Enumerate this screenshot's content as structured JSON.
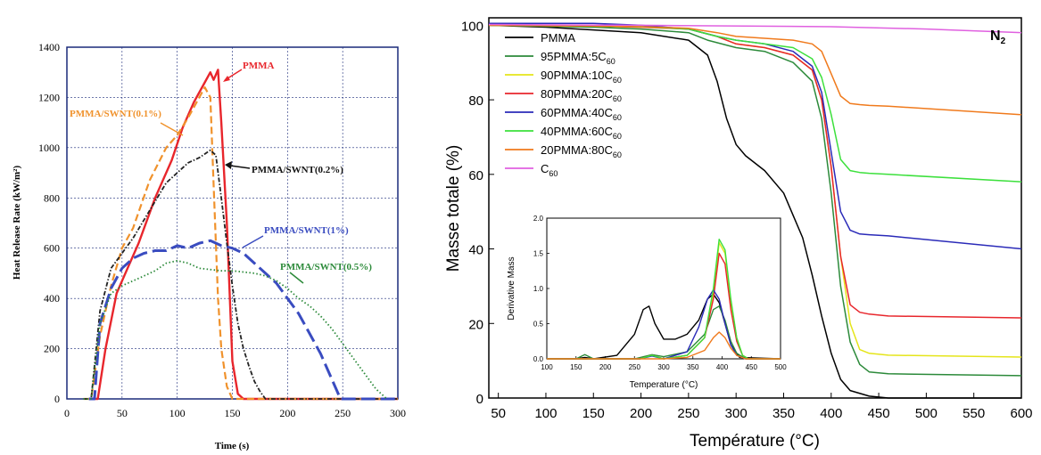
{
  "chart_data": [
    {
      "type": "line",
      "xlabel": "Time (s)",
      "ylabel": "Heat Release Rate (kW/m²)",
      "xlim": [
        0,
        300
      ],
      "ylim": [
        0,
        1400
      ],
      "xticks": [
        0,
        50,
        100,
        150,
        200,
        250,
        300
      ],
      "yticks": [
        0,
        200,
        400,
        600,
        800,
        1000,
        1200,
        1400
      ],
      "grid": true,
      "series": [
        {
          "name": "PMMA",
          "color": "#e8262c",
          "style": "solid",
          "x": [
            20,
            28,
            35,
            45,
            55,
            65,
            80,
            95,
            105,
            115,
            125,
            130,
            133,
            137,
            140,
            145,
            150,
            155,
            160,
            300
          ],
          "y": [
            0,
            0,
            200,
            420,
            520,
            620,
            800,
            950,
            1080,
            1180,
            1260,
            1300,
            1270,
            1310,
            1100,
            700,
            150,
            20,
            0,
            0
          ]
        },
        {
          "name": "PMMA/SWNT(0.1%)",
          "color": "#f0922c",
          "style": "dashed",
          "x": [
            15,
            22,
            30,
            40,
            50,
            60,
            75,
            90,
            100,
            110,
            120,
            125,
            130,
            133,
            137,
            140,
            145,
            150,
            155,
            300
          ],
          "y": [
            0,
            0,
            250,
            450,
            600,
            680,
            870,
            1000,
            1050,
            1120,
            1200,
            1240,
            1200,
            850,
            400,
            200,
            50,
            0,
            0,
            0
          ]
        },
        {
          "name": "PMMA/SWNT(0.2%)",
          "color": "#222222",
          "style": "dotdash",
          "x": [
            15,
            22,
            30,
            40,
            50,
            60,
            75,
            90,
            100,
            110,
            120,
            130,
            135,
            140,
            145,
            150,
            155,
            160,
            165,
            170,
            175,
            180,
            300
          ],
          "y": [
            0,
            0,
            350,
            520,
            580,
            640,
            750,
            860,
            900,
            940,
            960,
            990,
            970,
            800,
            620,
            450,
            300,
            200,
            130,
            70,
            30,
            0,
            0
          ]
        },
        {
          "name": "PMMA/SWNT(1%)",
          "color": "#3a4cc0",
          "style": "longdash",
          "x": [
            20,
            25,
            30,
            40,
            50,
            60,
            70,
            80,
            90,
            100,
            110,
            120,
            130,
            140,
            150,
            160,
            170,
            180,
            190,
            200,
            210,
            220,
            230,
            240,
            248,
            300
          ],
          "y": [
            0,
            0,
            300,
            440,
            520,
            560,
            580,
            590,
            590,
            610,
            600,
            620,
            630,
            610,
            600,
            580,
            540,
            500,
            460,
            400,
            340,
            260,
            180,
            80,
            0,
            0
          ]
        },
        {
          "name": "PMMA/SWNT(0.5%)",
          "color": "#2c8a3a",
          "style": "dotted",
          "x": [
            15,
            22,
            30,
            40,
            50,
            60,
            70,
            80,
            90,
            100,
            110,
            120,
            130,
            140,
            150,
            160,
            170,
            180,
            190,
            200,
            210,
            220,
            230,
            240,
            250,
            260,
            270,
            280,
            290
          ],
          "y": [
            0,
            0,
            300,
            420,
            450,
            470,
            490,
            510,
            540,
            550,
            540,
            520,
            515,
            510,
            510,
            505,
            500,
            490,
            470,
            440,
            400,
            370,
            330,
            280,
            220,
            160,
            100,
            40,
            0
          ]
        }
      ]
    },
    {
      "type": "line",
      "xlabel": "Température (°C)",
      "ylabel": "Masse totale (%)",
      "xlim": [
        40,
        600
      ],
      "ylim": [
        0,
        102
      ],
      "xticks": [
        50,
        100,
        150,
        200,
        250,
        300,
        350,
        400,
        450,
        500,
        550,
        600
      ],
      "yticks": [
        0,
        20,
        40,
        60,
        80,
        100
      ],
      "grid": false,
      "annotation": "N2",
      "legend": "top-left",
      "series": [
        {
          "name": "PMMA",
          "color": "#000000",
          "x": [
            40,
            100,
            200,
            250,
            270,
            280,
            290,
            300,
            310,
            330,
            350,
            370,
            380,
            390,
            400,
            410,
            420,
            440,
            460,
            600
          ],
          "y": [
            100,
            99.5,
            98,
            96,
            92,
            85,
            75,
            68,
            65,
            61,
            55,
            43,
            33,
            22,
            12,
            5,
            2,
            0.5,
            0,
            0
          ]
        },
        {
          "name": "95PMMA:5C60",
          "color": "#2c8a3a",
          "x": [
            40,
            150,
            200,
            250,
            270,
            300,
            330,
            360,
            380,
            390,
            400,
            410,
            420,
            430,
            440,
            460,
            600
          ],
          "y": [
            100,
            99.5,
            99,
            98,
            96,
            94,
            93,
            90,
            85,
            75,
            55,
            30,
            15,
            9,
            7,
            6.5,
            6
          ]
        },
        {
          "name": "90PMMA:10C60",
          "color": "#e5e51a",
          "x": [
            40,
            150,
            200,
            250,
            280,
            300,
            330,
            360,
            380,
            390,
            400,
            410,
            420,
            430,
            440,
            460,
            600
          ],
          "y": [
            100,
            99.8,
            99.5,
            99,
            97,
            95,
            94,
            92,
            88,
            80,
            62,
            38,
            20,
            13,
            12,
            11.5,
            11
          ]
        },
        {
          "name": "80PMMA:20C60",
          "color": "#e8262c",
          "x": [
            40,
            150,
            200,
            250,
            280,
            300,
            330,
            360,
            380,
            390,
            400,
            410,
            420,
            430,
            440,
            460,
            600
          ],
          "y": [
            100,
            99.8,
            99.5,
            99,
            97,
            95,
            94,
            92,
            88,
            80,
            62,
            38,
            25,
            23,
            22.5,
            22,
            21.5
          ]
        },
        {
          "name": "60PMMA:40C60",
          "color": "#2a2ab8",
          "x": [
            40,
            150,
            200,
            250,
            280,
            300,
            330,
            360,
            380,
            390,
            400,
            410,
            420,
            430,
            440,
            460,
            600
          ],
          "y": [
            100.5,
            100.5,
            100,
            99,
            97,
            96,
            95,
            93,
            89,
            82,
            66,
            50,
            45,
            44,
            43.8,
            43.5,
            40
          ]
        },
        {
          "name": "40PMMA:60C60",
          "color": "#3ce03c",
          "x": [
            40,
            150,
            200,
            250,
            280,
            300,
            330,
            360,
            380,
            390,
            400,
            410,
            420,
            430,
            440,
            460,
            600
          ],
          "y": [
            100,
            99.8,
            99.6,
            99,
            97,
            96,
            95,
            94,
            91,
            86,
            76,
            64,
            61,
            60.5,
            60.3,
            60,
            58
          ]
        },
        {
          "name": "20PMMA:80C60",
          "color": "#f07a1c",
          "x": [
            40,
            150,
            200,
            250,
            280,
            300,
            330,
            360,
            380,
            390,
            400,
            410,
            420,
            430,
            440,
            460,
            600
          ],
          "y": [
            100,
            99.8,
            99.6,
            99.2,
            98,
            97,
            96.5,
            96,
            95,
            93,
            87,
            81,
            79,
            78.7,
            78.5,
            78.3,
            76
          ]
        },
        {
          "name": "C60",
          "color": "#e060e0",
          "x": [
            40,
            200,
            400,
            500,
            600
          ],
          "y": [
            100.2,
            100,
            99.6,
            99,
            98
          ]
        }
      ]
    },
    {
      "type": "line",
      "xlabel": "Temperature (°C)",
      "ylabel": "Derivative Mass",
      "xlim": [
        100,
        500
      ],
      "ylim": [
        0,
        2.0
      ],
      "xticks": [
        100,
        150,
        200,
        250,
        300,
        350,
        400,
        450,
        500
      ],
      "yticks": [
        0.0,
        0.5,
        1.0,
        1.5,
        2.0
      ],
      "series": [
        {
          "color": "#000000",
          "x": [
            100,
            150,
            165,
            180,
            220,
            250,
            265,
            275,
            285,
            300,
            320,
            340,
            360,
            375,
            385,
            395,
            405,
            415,
            430,
            500
          ],
          "y": [
            0,
            0,
            0.02,
            0,
            0.05,
            0.35,
            0.7,
            0.75,
            0.5,
            0.28,
            0.28,
            0.35,
            0.55,
            0.85,
            0.92,
            0.8,
            0.5,
            0.2,
            0.02,
            0
          ]
        },
        {
          "color": "#2c8a3a",
          "x": [
            100,
            150,
            165,
            180,
            250,
            280,
            300,
            340,
            370,
            385,
            395,
            405,
            415,
            425,
            440,
            500
          ],
          "y": [
            0,
            0,
            0.06,
            0,
            0,
            0.06,
            0.03,
            0.1,
            0.35,
            0.7,
            0.75,
            0.55,
            0.25,
            0.08,
            0,
            0
          ]
        },
        {
          "color": "#e5e51a",
          "x": [
            100,
            260,
            280,
            300,
            340,
            370,
            385,
            395,
            405,
            415,
            425,
            435,
            445,
            500
          ],
          "y": [
            0,
            0,
            0.05,
            0,
            0.05,
            0.3,
            0.9,
            1.65,
            1.5,
            0.8,
            0.3,
            0.05,
            0,
            0
          ]
        },
        {
          "color": "#e8262c",
          "x": [
            100,
            260,
            280,
            300,
            340,
            370,
            385,
            395,
            405,
            415,
            425,
            435,
            445,
            500
          ],
          "y": [
            0,
            0,
            0.05,
            0,
            0.05,
            0.3,
            0.85,
            1.5,
            1.35,
            0.7,
            0.25,
            0.05,
            0,
            0
          ]
        },
        {
          "color": "#2a2ab8",
          "x": [
            100,
            260,
            280,
            300,
            340,
            360,
            375,
            385,
            395,
            405,
            415,
            425,
            440,
            500
          ],
          "y": [
            0,
            0,
            0.04,
            0,
            0.1,
            0.45,
            0.85,
            0.98,
            0.85,
            0.5,
            0.2,
            0.05,
            0,
            0
          ]
        },
        {
          "color": "#3ce03c",
          "x": [
            100,
            260,
            280,
            300,
            340,
            370,
            385,
            395,
            405,
            415,
            425,
            435,
            445,
            500
          ],
          "y": [
            0,
            0,
            0.05,
            0,
            0.05,
            0.3,
            1.0,
            1.7,
            1.55,
            0.85,
            0.3,
            0.05,
            0,
            0
          ]
        },
        {
          "color": "#f07a1c",
          "x": [
            100,
            300,
            340,
            370,
            385,
            395,
            405,
            415,
            425,
            440,
            500
          ],
          "y": [
            0,
            0,
            0.02,
            0.12,
            0.3,
            0.38,
            0.3,
            0.15,
            0.05,
            0,
            0
          ]
        }
      ]
    }
  ]
}
